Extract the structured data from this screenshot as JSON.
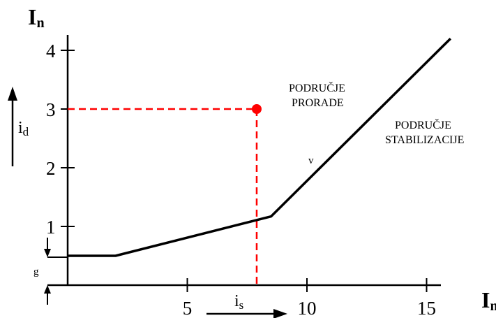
{
  "chart_data": {
    "type": "line",
    "y_axis_title": {
      "main": "I",
      "sub": "n"
    },
    "x_axis_title": {
      "main": "I",
      "sub": "n"
    },
    "x_ticks": [
      5,
      10,
      15
    ],
    "y_ticks": [
      1,
      2,
      3,
      4
    ],
    "xlim": [
      0,
      16.5
    ],
    "ylim": [
      0,
      4.5
    ],
    "series": [
      {
        "x": [
          0,
          2,
          8.5,
          16
        ],
        "y": [
          0.5,
          0.5,
          1.17,
          4.2
        ]
      }
    ],
    "operating_point": {
      "x": 7.9,
      "y": 3.0,
      "color": "#ff0000"
    },
    "region_labels": {
      "tripping": [
        "PODRUČJE",
        "PRORADE"
      ],
      "stabilization": [
        "PODRUČJE",
        "STABILIZACIJE"
      ]
    },
    "annotations": {
      "differential_current": {
        "main": "i",
        "sub": "d"
      },
      "stabilizing_current": {
        "main": "i",
        "sub": "s"
      },
      "threshold": "g",
      "slope_mark": "v"
    }
  }
}
